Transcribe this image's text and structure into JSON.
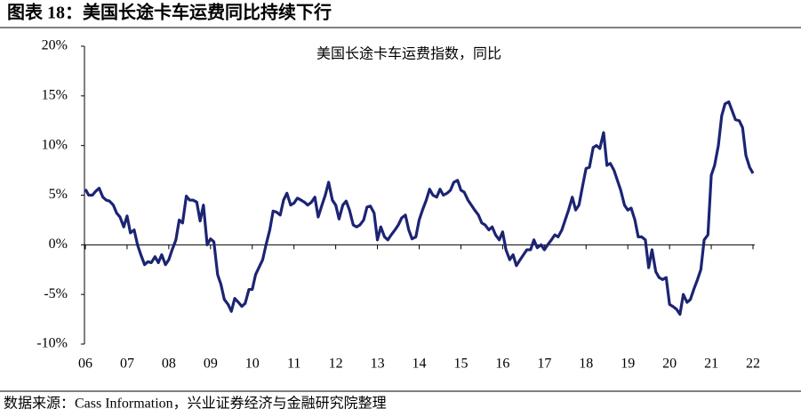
{
  "chart_data": {
    "type": "line",
    "title": "图表 18：美国长途卡车运费同比持续下行",
    "source": "数据来源：Cass Information，兴业证券经济与金融研究院整理",
    "x": [
      2006.0,
      2006.08,
      2006.17,
      2006.25,
      2006.33,
      2006.42,
      2006.5,
      2006.58,
      2006.67,
      2006.75,
      2006.83,
      2006.92,
      2007.0,
      2007.08,
      2007.17,
      2007.25,
      2007.33,
      2007.42,
      2007.5,
      2007.58,
      2007.67,
      2007.75,
      2007.83,
      2007.92,
      2008.0,
      2008.08,
      2008.17,
      2008.25,
      2008.33,
      2008.42,
      2008.5,
      2008.58,
      2008.67,
      2008.75,
      2008.83,
      2008.92,
      2009.0,
      2009.08,
      2009.17,
      2009.25,
      2009.33,
      2009.42,
      2009.5,
      2009.58,
      2009.67,
      2009.75,
      2009.83,
      2009.92,
      2010.0,
      2010.08,
      2010.17,
      2010.25,
      2010.33,
      2010.42,
      2010.5,
      2010.58,
      2010.67,
      2010.75,
      2010.83,
      2010.92,
      2011.0,
      2011.08,
      2011.17,
      2011.25,
      2011.33,
      2011.42,
      2011.5,
      2011.58,
      2011.67,
      2011.75,
      2011.83,
      2011.92,
      2012.0,
      2012.08,
      2012.17,
      2012.25,
      2012.33,
      2012.42,
      2012.5,
      2012.58,
      2012.67,
      2012.75,
      2012.83,
      2012.92,
      2013.0,
      2013.08,
      2013.17,
      2013.25,
      2013.33,
      2013.42,
      2013.5,
      2013.58,
      2013.67,
      2013.75,
      2013.83,
      2013.92,
      2014.0,
      2014.08,
      2014.17,
      2014.25,
      2014.33,
      2014.42,
      2014.5,
      2014.58,
      2014.67,
      2014.75,
      2014.83,
      2014.92,
      2015.0,
      2015.08,
      2015.17,
      2015.25,
      2015.33,
      2015.42,
      2015.5,
      2015.58,
      2015.67,
      2015.75,
      2015.83,
      2015.92,
      2016.0,
      2016.08,
      2016.17,
      2016.25,
      2016.33,
      2016.42,
      2016.5,
      2016.58,
      2016.67,
      2016.75,
      2016.83,
      2016.92,
      2017.0,
      2017.08,
      2017.17,
      2017.25,
      2017.33,
      2017.42,
      2017.5,
      2017.58,
      2017.67,
      2017.75,
      2017.83,
      2017.92,
      2018.0,
      2018.08,
      2018.17,
      2018.25,
      2018.33,
      2018.42,
      2018.5,
      2018.58,
      2018.67,
      2018.75,
      2018.83,
      2018.92,
      2019.0,
      2019.08,
      2019.17,
      2019.25,
      2019.33,
      2019.42,
      2019.5,
      2019.58,
      2019.67,
      2019.75,
      2019.83,
      2019.92,
      2020.0,
      2020.08,
      2020.17,
      2020.25,
      2020.33,
      2020.42,
      2020.5,
      2020.58,
      2020.67,
      2020.75,
      2020.83,
      2020.92,
      2021.0,
      2021.08,
      2021.17,
      2021.25,
      2021.33,
      2021.42,
      2021.5,
      2021.58,
      2021.67,
      2021.75,
      2021.83,
      2021.92,
      2022.0
    ],
    "series": [
      {
        "name": "美国长途卡车运费指数，同比",
        "color": "#1c2473",
        "values": [
          5.6,
          5.0,
          5.0,
          5.4,
          5.7,
          4.8,
          4.5,
          4.4,
          4.0,
          3.2,
          2.8,
          1.8,
          2.9,
          1.2,
          1.5,
          0.0,
          -1.0,
          -2.0,
          -1.7,
          -1.8,
          -1.2,
          -1.8,
          -1.0,
          -2.0,
          -1.5,
          -0.5,
          0.5,
          2.5,
          2.2,
          4.9,
          4.5,
          4.5,
          4.3,
          2.4,
          4.0,
          0.0,
          0.6,
          0.3,
          -3.0,
          -4.0,
          -5.5,
          -6.0,
          -6.7,
          -5.4,
          -5.8,
          -6.2,
          -5.9,
          -4.5,
          -4.5,
          -3.0,
          -2.2,
          -1.5,
          0.0,
          1.5,
          3.4,
          3.3,
          3.0,
          4.5,
          5.2,
          4.0,
          4.2,
          4.7,
          4.5,
          4.3,
          4.0,
          4.3,
          4.8,
          2.8,
          4.0,
          5.0,
          6.3,
          4.5,
          4.0,
          2.6,
          4.0,
          4.4,
          3.5,
          2.0,
          1.8,
          2.0,
          2.5,
          3.8,
          3.9,
          3.2,
          0.5,
          1.8,
          0.8,
          0.5,
          1.0,
          1.5,
          2.0,
          2.7,
          3.0,
          1.5,
          0.6,
          0.8,
          2.5,
          3.5,
          4.5,
          5.6,
          5.0,
          4.8,
          5.6,
          5.0,
          5.2,
          5.5,
          6.3,
          6.5,
          5.5,
          5.3,
          4.5,
          4.0,
          3.5,
          3.0,
          2.2,
          2.0,
          1.5,
          1.8,
          1.0,
          0.5,
          1.3,
          -0.5,
          -1.5,
          -1.0,
          -2.1,
          -1.5,
          -1.0,
          -0.5,
          -0.5,
          0.5,
          -0.3,
          0.0,
          -0.5,
          0.0,
          0.5,
          1.0,
          0.8,
          1.5,
          2.5,
          3.5,
          4.8,
          3.5,
          4.0,
          6.0,
          7.7,
          7.8,
          9.8,
          10.0,
          9.7,
          11.3,
          8.0,
          8.2,
          7.5,
          6.5,
          5.5,
          4.0,
          3.5,
          3.7,
          2.5,
          0.8,
          0.8,
          0.5,
          -2.3,
          -0.5,
          -2.7,
          -3.3,
          -3.5,
          -3.3,
          -6.0,
          -6.2,
          -6.5,
          -7.0,
          -5.0,
          -5.8,
          -5.5,
          -4.5,
          -3.5,
          -2.5,
          0.5,
          1.0,
          7.0,
          8.0,
          10.0,
          13.0,
          14.2,
          14.4,
          13.5,
          12.6,
          12.5,
          11.8,
          9.0,
          7.8,
          7.2
        ]
      }
    ],
    "xlim": [
      2006,
      2022
    ],
    "xticks": [
      {
        "value": 2006,
        "label": "06"
      },
      {
        "value": 2007,
        "label": "07"
      },
      {
        "value": 2008,
        "label": "08"
      },
      {
        "value": 2009,
        "label": "09"
      },
      {
        "value": 2010,
        "label": "10"
      },
      {
        "value": 2011,
        "label": "11"
      },
      {
        "value": 2012,
        "label": "12"
      },
      {
        "value": 2013,
        "label": "13"
      },
      {
        "value": 2014,
        "label": "14"
      },
      {
        "value": 2015,
        "label": "15"
      },
      {
        "value": 2016,
        "label": "16"
      },
      {
        "value": 2017,
        "label": "17"
      },
      {
        "value": 2018,
        "label": "18"
      },
      {
        "value": 2019,
        "label": "19"
      },
      {
        "value": 2020,
        "label": "20"
      },
      {
        "value": 2021,
        "label": "21"
      },
      {
        "value": 2022,
        "label": "22"
      }
    ],
    "ylim": [
      -10,
      20
    ],
    "yticks": [
      {
        "value": -10,
        "label": "-10%"
      },
      {
        "value": -5,
        "label": "-5%"
      },
      {
        "value": 0,
        "label": "0%"
      },
      {
        "value": 5,
        "label": "5%"
      },
      {
        "value": 10,
        "label": "10%"
      },
      {
        "value": 15,
        "label": "15%"
      },
      {
        "value": 20,
        "label": "20%"
      }
    ]
  }
}
